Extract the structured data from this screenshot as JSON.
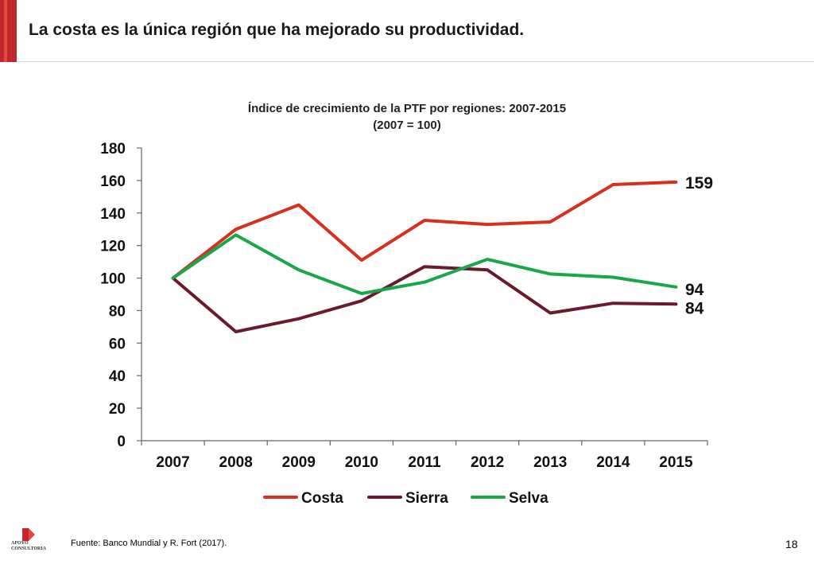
{
  "slide": {
    "title": "La costa es la única región que ha mejorado su productividad.",
    "source": "Fuente: Banco Mundial y R. Fort (2017).",
    "page_number": "18",
    "logo_line1": "APOYO",
    "logo_line2": "CONSULTORIA"
  },
  "colors": {
    "accent": "#c0282d",
    "costa": "#d7301f",
    "sierra": "#6b1a2e",
    "selva": "#19a74a"
  },
  "chart_data": {
    "type": "line",
    "title": "Índice de crecimiento de la PTF por regiones: 2007-2015",
    "subtitle": "(2007 = 100)",
    "xlabel": "",
    "ylabel": "",
    "x": [
      "2007",
      "2008",
      "2009",
      "2010",
      "2011",
      "2012",
      "2013",
      "2014",
      "2015"
    ],
    "ylim": [
      0,
      180
    ],
    "yticks": [
      0,
      20,
      40,
      60,
      80,
      100,
      120,
      140,
      160,
      180
    ],
    "grid": false,
    "legend_position": "bottom",
    "series": [
      {
        "name": "Costa",
        "color": "#d7301f",
        "values": [
          100,
          130,
          145,
          111,
          135.5,
          133,
          134.5,
          157.5,
          159
        ],
        "end_label": "159"
      },
      {
        "name": "Sierra",
        "color": "#6b1a2e",
        "values": [
          100,
          67,
          75,
          86,
          107,
          105,
          78.5,
          84.5,
          84
        ],
        "end_label": "84"
      },
      {
        "name": "Selva",
        "color": "#19a74a",
        "values": [
          100,
          126.5,
          105,
          90.5,
          97.5,
          111.5,
          102.5,
          100.5,
          94.5
        ],
        "end_label": "94"
      }
    ]
  }
}
